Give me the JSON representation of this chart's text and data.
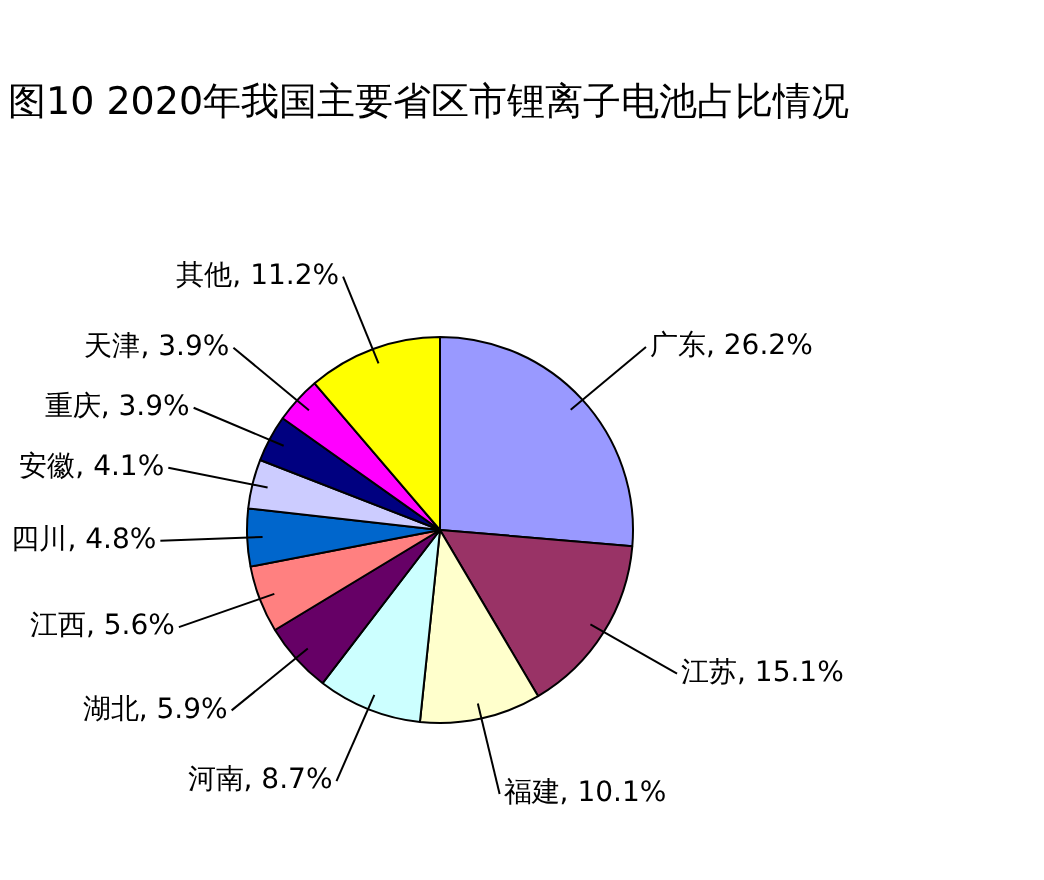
{
  "chart_data": {
    "type": "pie",
    "title": "图10 2020年我国主要省区市锂离子电池占比情况",
    "categories": [
      "广东",
      "江苏",
      "福建",
      "河南",
      "湖北",
      "江西",
      "四川",
      "安徽",
      "重庆",
      "天津",
      "其他"
    ],
    "values": [
      26.2,
      15.1,
      10.1,
      8.7,
      5.9,
      5.6,
      4.8,
      4.1,
      3.9,
      3.9,
      11.2
    ],
    "value_labels": [
      "26.2%",
      "15.1%",
      "10.1%",
      "8.7%",
      "5.9%",
      "5.6%",
      "4.8%",
      "4.1%",
      "3.9%",
      "3.9%",
      "11.2%"
    ],
    "colors": [
      "#9999ff",
      "#993366",
      "#ffffcc",
      "#ccffff",
      "#660066",
      "#ff8080",
      "#0066cc",
      "#ccccff",
      "#000080",
      "#ff00ff",
      "#ffff00"
    ],
    "legend": false
  }
}
